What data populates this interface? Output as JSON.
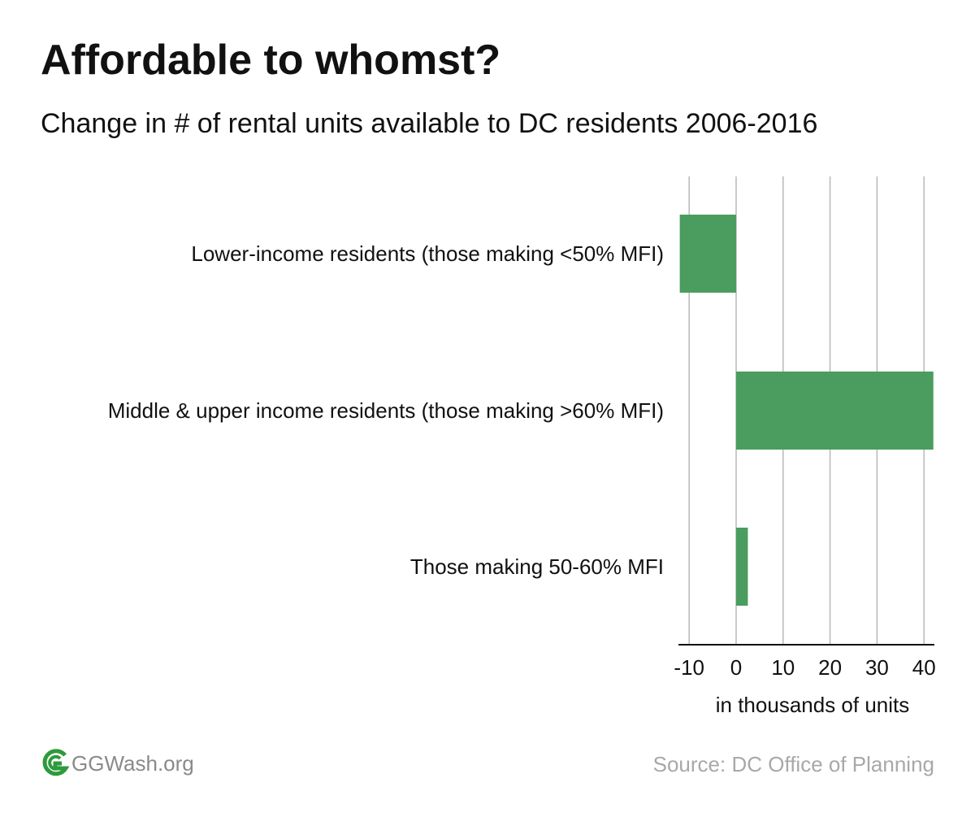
{
  "title": "Affordable to whomst?",
  "subtitle": "Change in # of rental units available to DC residents 2006-2016",
  "chart_data": {
    "type": "bar",
    "orientation": "horizontal",
    "categories": [
      "Lower-income residents (those making <50% MFI)",
      "Middle & upper income residents (those making >60% MFI)",
      "Those making 50-60% MFI"
    ],
    "values": [
      -12,
      42,
      2.5
    ],
    "xlabel": "in thousands of units",
    "ylabel": "",
    "xlim": [
      -12,
      42
    ],
    "xticks": [
      -10,
      0,
      10,
      20,
      30,
      40
    ],
    "xtick_labels": [
      "-10",
      "0",
      "10",
      "20",
      "30",
      "40"
    ],
    "grid": "vertical",
    "bar_color": "#4a9d5e"
  },
  "footer": {
    "logo_text": "GGWash.org",
    "logo_color": "#2e9a3c",
    "source": "Source: DC Office of Planning"
  }
}
